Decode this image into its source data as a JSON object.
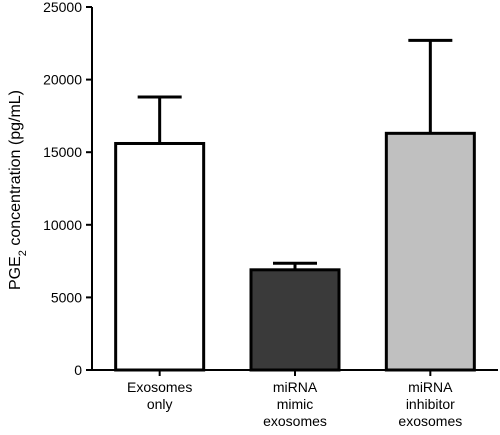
{
  "chart_data": {
    "type": "bar",
    "categories": [
      [
        "Exosomes",
        "only"
      ],
      [
        "miRNA",
        "mimic",
        "exosomes"
      ],
      [
        "miRNA",
        "inhibitor",
        "exosomes"
      ]
    ],
    "values": [
      15600,
      6900,
      16300
    ],
    "errors": [
      3200,
      450,
      6400
    ],
    "colors": [
      "#ffffff",
      "#3a3a3a",
      "#c0c0c0"
    ],
    "ylabel": {
      "prefix": "PGE",
      "subscript": "2",
      "suffix": " concentration (pg/mL)"
    },
    "ylim": [
      0,
      25000
    ],
    "yticks": [
      "0",
      "5000",
      "10000",
      "15000",
      "20000",
      "25000"
    ],
    "grid": false
  }
}
